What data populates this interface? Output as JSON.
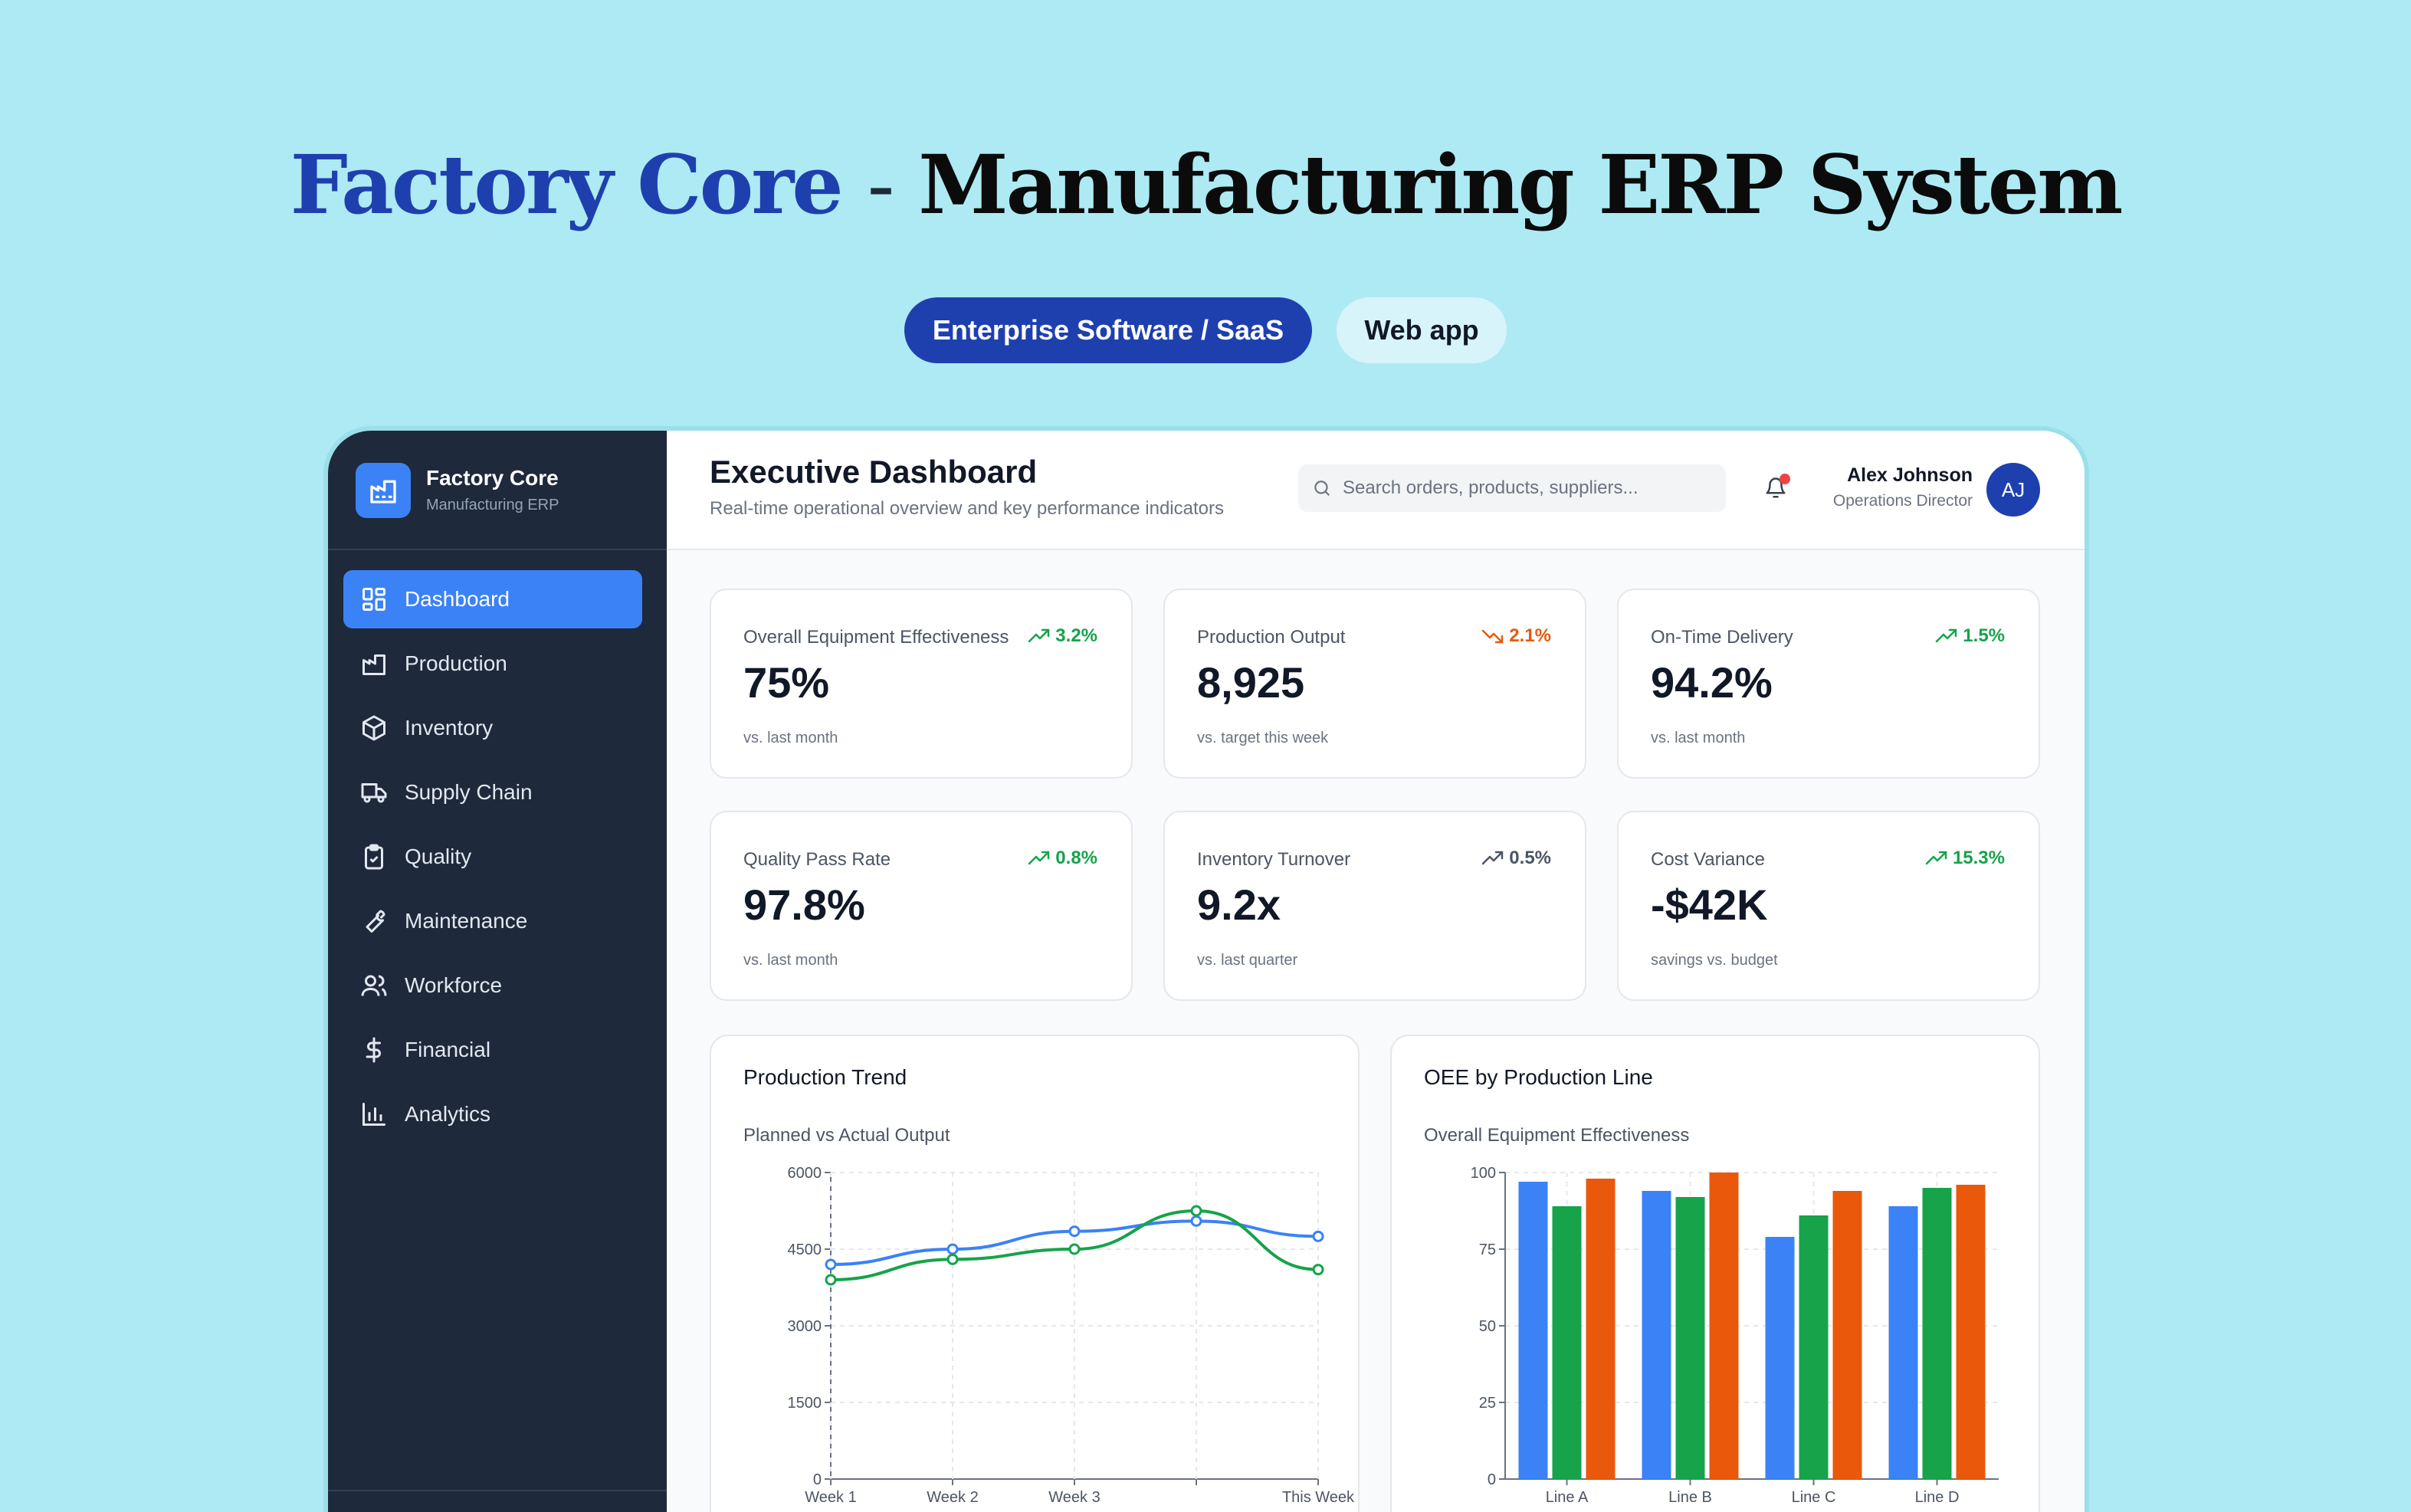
{
  "hero": {
    "brand": "Factory Core",
    "separator": "-",
    "title": "Manufacturing ERP System",
    "tag_category": "Enterprise Software / SaaS",
    "tag_platform": "Web app"
  },
  "sidebar": {
    "app_name": "Factory Core",
    "app_sub": "Manufacturing ERP",
    "items": [
      {
        "label": "Dashboard",
        "icon": "dashboard-grid-icon",
        "active": true
      },
      {
        "label": "Production",
        "icon": "factory-icon"
      },
      {
        "label": "Inventory",
        "icon": "box-icon"
      },
      {
        "label": "Supply Chain",
        "icon": "truck-icon"
      },
      {
        "label": "Quality",
        "icon": "clipboard-check-icon"
      },
      {
        "label": "Maintenance",
        "icon": "wrench-icon"
      },
      {
        "label": "Workforce",
        "icon": "users-icon"
      },
      {
        "label": "Financial",
        "icon": "dollar-icon"
      },
      {
        "label": "Analytics",
        "icon": "bar-chart-icon"
      }
    ]
  },
  "header": {
    "title": "Executive Dashboard",
    "subtitle": "Real-time operational overview and key performance indicators",
    "search_placeholder": "Search orders, products, suppliers...",
    "user_name": "Alex Johnson",
    "user_role": "Operations Director",
    "user_initials": "AJ"
  },
  "kpis": [
    {
      "label": "Overall Equipment Effectiveness",
      "trend": "3.2%",
      "direction": "up",
      "value": "75%",
      "note": "vs. last month"
    },
    {
      "label": "Production Output",
      "trend": "2.1%",
      "direction": "down",
      "value": "8,925",
      "note": "vs. target this week"
    },
    {
      "label": "On-Time Delivery",
      "trend": "1.5%",
      "direction": "up",
      "value": "94.2%",
      "note": "vs. last month"
    },
    {
      "label": "Quality Pass Rate",
      "trend": "0.8%",
      "direction": "up",
      "value": "97.8%",
      "note": "vs. last month"
    },
    {
      "label": "Inventory Turnover",
      "trend": "0.5%",
      "direction": "neutral",
      "value": "9.2x",
      "note": "vs. last quarter"
    },
    {
      "label": "Cost Variance",
      "trend": "15.3%",
      "direction": "up",
      "value": "-$42K",
      "note": "savings vs. budget"
    }
  ],
  "colors": {
    "brand": "#1e40af",
    "sidebar_bg": "#1e293b",
    "accent": "#3b82f6",
    "up": "#16a34a",
    "down": "#ea580c",
    "series_blue": "#3b82f6",
    "series_green": "#16a34a",
    "series_orange": "#ea580c"
  },
  "chart_data": [
    {
      "type": "line",
      "title": "Production Trend",
      "subtitle": "Planned vs Actual Output",
      "categories": [
        "Week 1",
        "Week 2",
        "Week 3",
        "",
        "This Week"
      ],
      "series": [
        {
          "values": [
            4200,
            4500,
            4850,
            5050,
            4750
          ],
          "color": "#3b82f6"
        },
        {
          "values": [
            3900,
            4300,
            4500,
            5250,
            4100
          ],
          "color": "#16a34a"
        }
      ],
      "yticks": [
        0,
        1500,
        3000,
        4500,
        6000
      ],
      "ylim": [
        0,
        6000
      ],
      "grid": true
    },
    {
      "type": "bar",
      "title": "OEE by Production Line",
      "subtitle": "Overall Equipment Effectiveness",
      "categories": [
        "Line A",
        "Line B",
        "Line C",
        "Line D"
      ],
      "series": [
        {
          "values": [
            97,
            94,
            79,
            89
          ],
          "color": "#3b82f6"
        },
        {
          "values": [
            89,
            92,
            86,
            95
          ],
          "color": "#16a34a"
        },
        {
          "values": [
            98,
            100,
            94,
            96
          ],
          "color": "#ea580c"
        }
      ],
      "yticks": [
        0,
        25,
        50,
        75,
        100
      ],
      "ylim": [
        0,
        100
      ],
      "grid": true
    }
  ]
}
